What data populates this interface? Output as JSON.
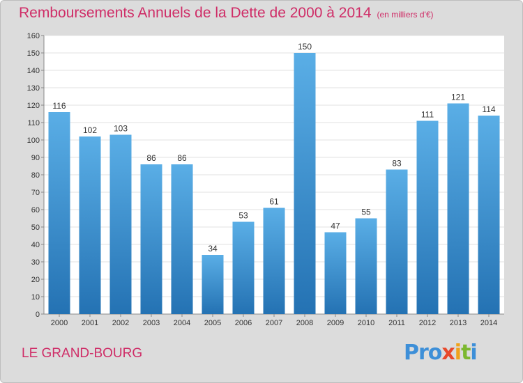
{
  "title": "Remboursements Annuels de la Dette de 2000 à 2014",
  "unit": "(en milliers d'€)",
  "commune": "LE GRAND-BOURG",
  "logo": {
    "p1": "Pro",
    "p2": "x",
    "p3": "i",
    "p4": "t",
    "p5": "i"
  },
  "colors": {
    "title": "#cf2d67",
    "bar_top": "#5aaee6",
    "bar_bottom": "#2472b3",
    "background": "#dcdcdc",
    "plot": "#ffffff"
  },
  "chart_data": {
    "type": "bar",
    "categories": [
      "2000",
      "2001",
      "2002",
      "2003",
      "2004",
      "2005",
      "2006",
      "2007",
      "2008",
      "2009",
      "2010",
      "2011",
      "2012",
      "2013",
      "2014"
    ],
    "values": [
      116,
      102,
      103,
      86,
      86,
      34,
      53,
      61,
      150,
      47,
      55,
      83,
      111,
      121,
      114
    ],
    "ylim": [
      0,
      160
    ],
    "yticks": [
      0,
      10,
      20,
      30,
      40,
      50,
      60,
      70,
      80,
      90,
      100,
      110,
      120,
      130,
      140,
      150,
      160
    ],
    "grid": true,
    "legend": "none",
    "data_labels": true
  }
}
